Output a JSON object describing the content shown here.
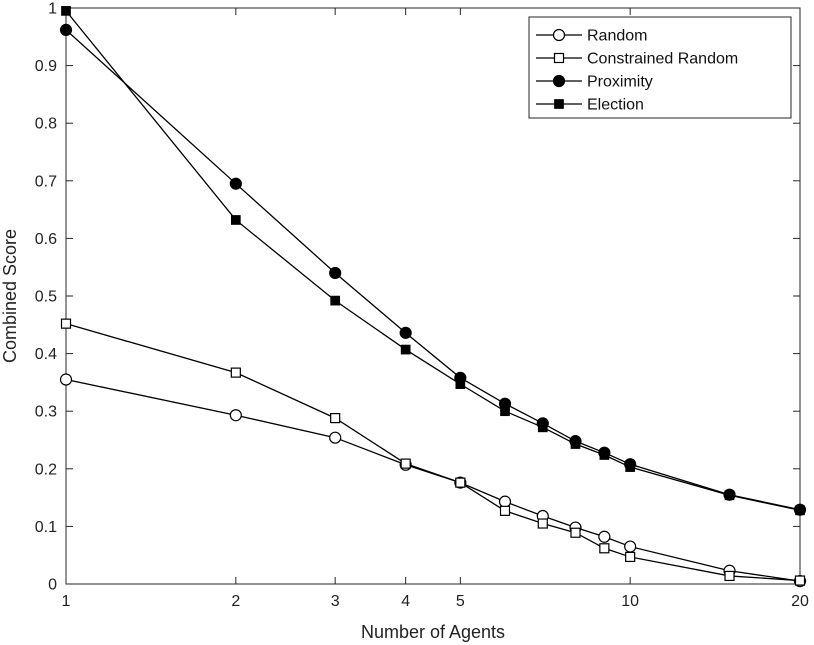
{
  "chart_data": {
    "type": "line",
    "title": "",
    "xlabel": "Number of Agents",
    "ylabel": "Combined Score",
    "xscale": "log",
    "xlim": [
      1,
      20
    ],
    "ylim": [
      0,
      1
    ],
    "xticks": [
      1,
      2,
      3,
      4,
      5,
      10,
      20
    ],
    "xtick_labels": [
      "1",
      "2",
      "3",
      "4",
      "5",
      "10",
      "20"
    ],
    "yticks": [
      0,
      0.1,
      0.2,
      0.3,
      0.4,
      0.5,
      0.6,
      0.7,
      0.8,
      0.9,
      1
    ],
    "ytick_labels": [
      "0",
      "0.1",
      "0.2",
      "0.3",
      "0.4",
      "0.5",
      "0.6",
      "0.7",
      "0.8",
      "0.9",
      "1"
    ],
    "grid": false,
    "legend_position": "top-right",
    "x": [
      1,
      2,
      3,
      4,
      5,
      6,
      7,
      8,
      9,
      10,
      15,
      20
    ],
    "series": [
      {
        "name": "Random",
        "marker": "circle-open",
        "values": [
          0.355,
          0.293,
          0.254,
          0.207,
          0.176,
          0.143,
          0.118,
          0.098,
          0.082,
          0.065,
          0.023,
          0.005
        ]
      },
      {
        "name": "Constrained Random",
        "marker": "square-open",
        "values": [
          0.452,
          0.367,
          0.288,
          0.209,
          0.176,
          0.127,
          0.105,
          0.089,
          0.062,
          0.047,
          0.014,
          0.006
        ]
      },
      {
        "name": "Proximity",
        "marker": "circle-filled",
        "values": [
          0.962,
          0.695,
          0.54,
          0.436,
          0.358,
          0.313,
          0.279,
          0.248,
          0.228,
          0.208,
          0.155,
          0.129
        ]
      },
      {
        "name": "Election",
        "marker": "square-filled",
        "values": [
          0.995,
          0.632,
          0.492,
          0.407,
          0.347,
          0.3,
          0.272,
          0.243,
          0.224,
          0.203,
          0.154,
          0.128
        ]
      }
    ]
  },
  "colors": {
    "line": "#000000",
    "axis": "#262626",
    "background": "#ffffff"
  }
}
